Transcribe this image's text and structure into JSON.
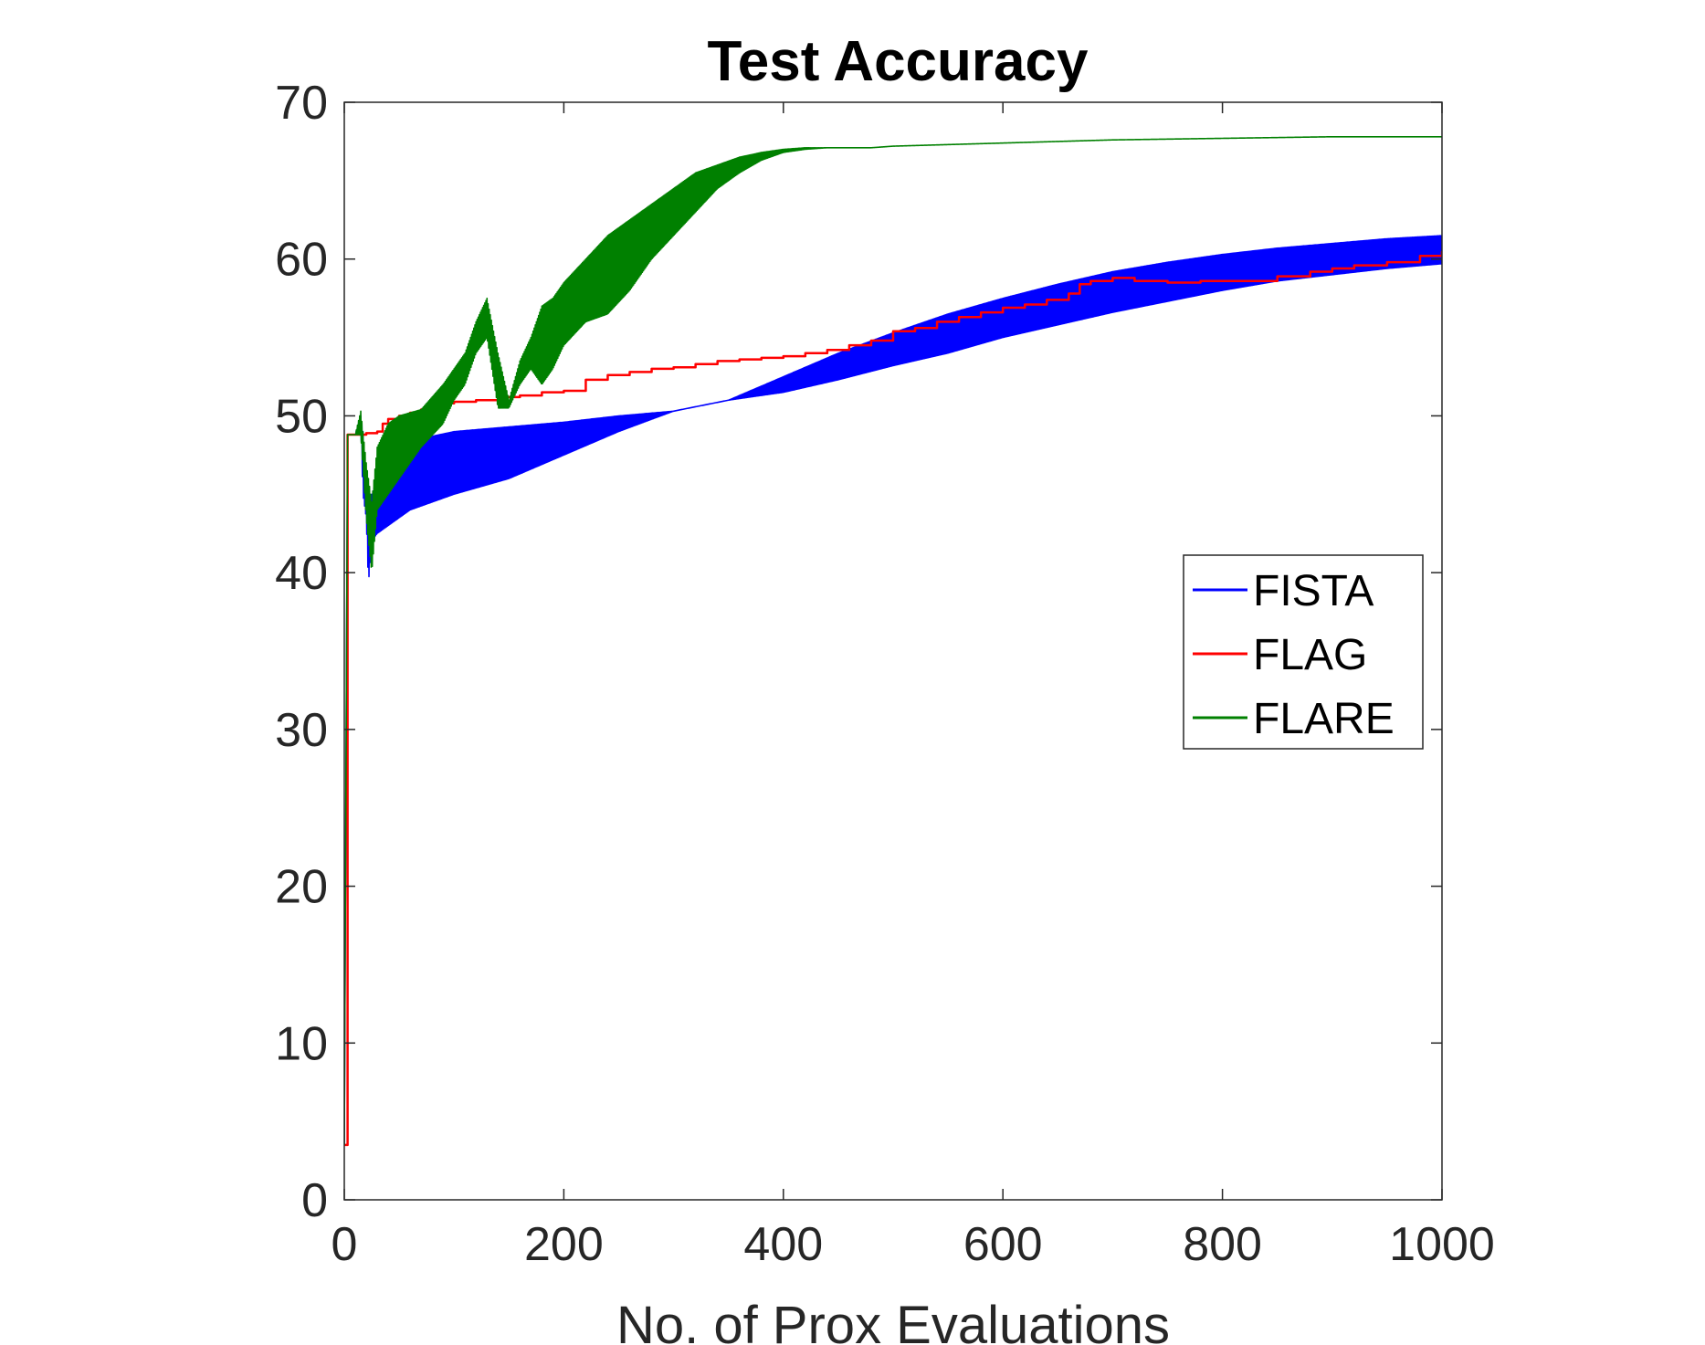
{
  "chart_data": {
    "type": "line",
    "title": "Test Accuracy",
    "xlabel": "No. of Prox Evaluations",
    "ylabel": "",
    "xlim": [
      0,
      1000
    ],
    "ylim": [
      0,
      70
    ],
    "xticks": [
      0,
      200,
      400,
      600,
      800,
      1000
    ],
    "yticks": [
      0,
      10,
      20,
      30,
      40,
      50,
      60,
      70
    ],
    "xtick_labels": [
      "0",
      "200",
      "400",
      "600",
      "800",
      "1000"
    ],
    "ytick_labels": [
      "0",
      "10",
      "20",
      "30",
      "40",
      "50",
      "60",
      "70"
    ],
    "grid": false,
    "legend_position": "right-middle",
    "series": [
      {
        "name": "FISTA",
        "color": "#0000ff",
        "style": "oscillating-band",
        "x": [
          0,
          3,
          10,
          15,
          17,
          20,
          22,
          25,
          30,
          40,
          60,
          80,
          100,
          150,
          200,
          250,
          300,
          350,
          400,
          450,
          500,
          550,
          600,
          650,
          700,
          750,
          800,
          850,
          900,
          950,
          1000
        ],
        "upper": [
          3.5,
          48.8,
          48.8,
          50,
          49,
          46,
          44,
          45,
          46,
          47,
          48,
          48.7,
          49,
          49.3,
          49.6,
          50,
          50.3,
          51,
          52.5,
          54,
          55.3,
          56.5,
          57.5,
          58.4,
          59.2,
          59.8,
          60.3,
          60.7,
          61,
          61.3,
          61.5
        ],
        "lower": [
          3.5,
          48.8,
          48.8,
          49.5,
          45,
          43.5,
          39.3,
          42,
          42.5,
          43,
          44,
          44.5,
          45,
          46,
          47.5,
          49,
          50.3,
          51,
          51.5,
          52.3,
          53.2,
          54,
          55,
          55.8,
          56.6,
          57.3,
          58,
          58.6,
          59,
          59.4,
          59.7
        ]
      },
      {
        "name": "FLAG",
        "color": "#ff0000",
        "style": "step",
        "x": [
          0,
          3,
          10,
          20,
          30,
          35,
          40,
          50,
          60,
          70,
          80,
          90,
          100,
          120,
          140,
          160,
          180,
          200,
          220,
          240,
          260,
          280,
          300,
          320,
          340,
          360,
          380,
          400,
          420,
          440,
          460,
          480,
          500,
          520,
          540,
          560,
          580,
          600,
          620,
          640,
          660,
          670,
          680,
          700,
          720,
          750,
          780,
          800,
          820,
          850,
          880,
          900,
          920,
          950,
          980,
          1000
        ],
        "y": [
          3.5,
          48.8,
          48.8,
          48.9,
          49,
          49.5,
          49.8,
          50,
          50.2,
          50.4,
          50.6,
          50.8,
          50.9,
          51,
          51.2,
          51.3,
          51.5,
          51.6,
          52.3,
          52.6,
          52.8,
          53,
          53.1,
          53.3,
          53.5,
          53.6,
          53.7,
          53.8,
          54,
          54.2,
          54.5,
          54.8,
          55.4,
          55.6,
          56,
          56.3,
          56.6,
          56.9,
          57.1,
          57.4,
          57.8,
          58.4,
          58.6,
          58.8,
          58.6,
          58.5,
          58.6,
          58.6,
          58.6,
          58.9,
          59.2,
          59.4,
          59.6,
          59.8,
          60.2,
          60.5
        ]
      },
      {
        "name": "FLARE",
        "color": "#008000",
        "style": "oscillating-band",
        "x": [
          0,
          3,
          10,
          15,
          20,
          25,
          30,
          40,
          50,
          70,
          90,
          100,
          110,
          120,
          130,
          140,
          150,
          160,
          170,
          180,
          190,
          200,
          220,
          240,
          260,
          280,
          300,
          320,
          340,
          360,
          380,
          400,
          420,
          440,
          460,
          480,
          500,
          600,
          700,
          800,
          900,
          1000
        ],
        "upper": [
          3.5,
          48.8,
          48.8,
          50.3,
          47,
          44.5,
          48,
          49.5,
          50,
          50.4,
          52,
          53,
          54,
          56,
          57.5,
          54,
          51,
          53.5,
          55,
          57,
          57.5,
          58.5,
          60,
          61.5,
          62.5,
          63.5,
          64.5,
          65.5,
          66,
          66.5,
          66.8,
          67,
          67.1,
          67.1,
          67.1,
          67.1,
          67.2,
          67.4,
          67.6,
          67.7,
          67.8,
          67.8
        ],
        "lower": [
          3.5,
          48.8,
          48.8,
          48.8,
          43.5,
          40,
          44,
          45,
          46,
          48,
          49.5,
          51,
          52,
          54,
          55,
          50.5,
          50.5,
          52,
          53,
          52,
          53,
          54.5,
          56,
          56.5,
          58,
          60,
          61.5,
          63,
          64.5,
          65.5,
          66.3,
          66.8,
          67,
          67.1,
          67.1,
          67.1,
          67.2,
          67.4,
          67.6,
          67.7,
          67.8,
          67.8
        ]
      }
    ]
  }
}
